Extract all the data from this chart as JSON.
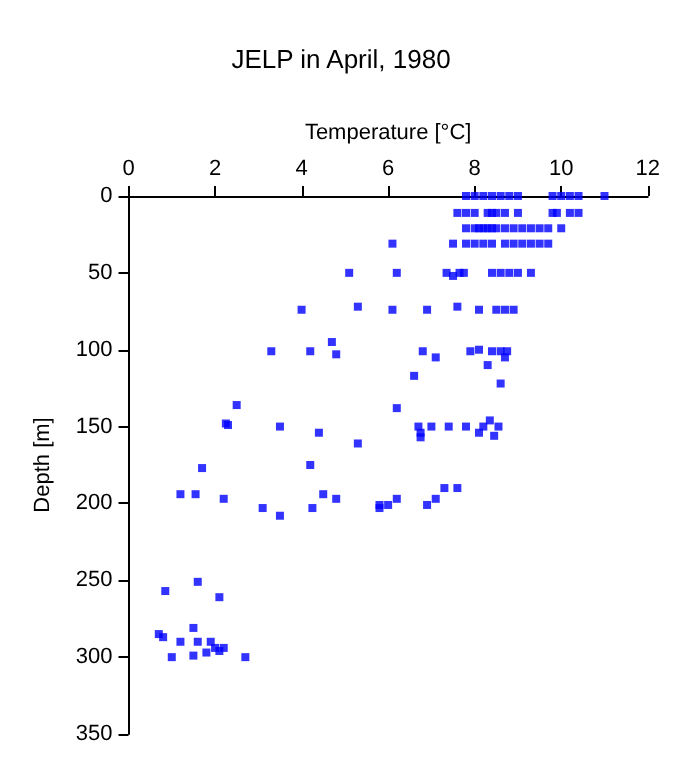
{
  "chart_data": {
    "type": "scatter",
    "title": "JELP in April, 1980",
    "xlabel": "Temperature [°C]",
    "ylabel": "Depth [m]",
    "xlim": [
      0,
      12
    ],
    "xticks": [
      0,
      2,
      4,
      6,
      8,
      10,
      12
    ],
    "ylim": [
      350,
      0
    ],
    "yticks": [
      0,
      50,
      100,
      150,
      200,
      250,
      300,
      350
    ],
    "grid": false,
    "marker": "square",
    "series": [
      {
        "color": "#0000ff",
        "x": [
          7.8,
          8.0,
          8.2,
          8.4,
          8.6,
          8.8,
          9.0,
          9.8,
          10.0,
          10.2,
          10.4,
          11.0,
          7.6,
          7.8,
          8.0,
          8.3,
          8.4,
          8.5,
          8.7,
          9.0,
          9.8,
          9.9,
          10.2,
          10.4,
          7.8,
          8.0,
          8.1,
          8.2,
          8.3,
          8.4,
          8.5,
          8.7,
          8.9,
          9.1,
          9.3,
          9.5,
          9.7,
          10.0,
          6.1,
          7.5,
          7.8,
          8.0,
          8.2,
          8.4,
          8.7,
          8.9,
          9.1,
          9.3,
          9.5,
          9.7,
          5.1,
          6.2,
          7.35,
          7.5,
          7.65,
          7.75,
          8.4,
          8.6,
          8.8,
          9.0,
          9.3,
          4.0,
          5.3,
          6.1,
          6.9,
          7.6,
          8.1,
          8.5,
          8.7,
          8.9,
          4.7,
          3.3,
          4.2,
          4.8,
          6.8,
          7.9,
          8.1,
          8.4,
          8.6,
          8.75,
          7.1,
          8.7,
          8.3,
          6.6,
          8.6,
          2.5,
          6.2,
          2.25,
          2.3,
          3.5,
          6.7,
          7.0,
          7.4,
          7.8,
          8.2,
          8.55,
          8.35,
          4.4,
          6.75,
          8.1,
          6.75,
          8.45,
          5.3,
          4.2,
          1.7,
          7.3,
          7.6,
          1.2,
          1.55,
          4.5,
          2.2,
          4.8,
          6.2,
          7.1,
          5.8,
          6.0,
          6.9,
          3.1,
          4.25,
          5.8,
          3.5,
          1.6,
          0.85,
          2.1,
          1.5,
          0.7,
          0.8,
          1.2,
          1.6,
          1.9,
          2.0,
          2.2,
          1.0,
          1.5,
          1.8,
          2.1,
          2.7
        ],
        "values": [
          0,
          0,
          0,
          0,
          0,
          0,
          0,
          0,
          0,
          0,
          0,
          0,
          11,
          11,
          11,
          11,
          11,
          11,
          11,
          11,
          11,
          11,
          11,
          11,
          21,
          21,
          21,
          21,
          21,
          21,
          21,
          21,
          21,
          21,
          21,
          21,
          21,
          21,
          31,
          31,
          31,
          31,
          31,
          31,
          31,
          31,
          31,
          31,
          31,
          31,
          50,
          50,
          50,
          52,
          50,
          50,
          50,
          50,
          50,
          50,
          50,
          74,
          72,
          74,
          74,
          72,
          74,
          74,
          74,
          74,
          95,
          101,
          101,
          103,
          101,
          101,
          100,
          101,
          101,
          101,
          105,
          105,
          110,
          117,
          122,
          136,
          138,
          148,
          149,
          150,
          150,
          150,
          150,
          150,
          150,
          150,
          146,
          154,
          154,
          154,
          157,
          156,
          161,
          175,
          177,
          190,
          190,
          194,
          194,
          194,
          197,
          197,
          197,
          197,
          201,
          201,
          201,
          203,
          203,
          203,
          208,
          251,
          257,
          261,
          281,
          285,
          287,
          290,
          290,
          290,
          294,
          294,
          300,
          299,
          297,
          296,
          300
        ]
      }
    ]
  }
}
